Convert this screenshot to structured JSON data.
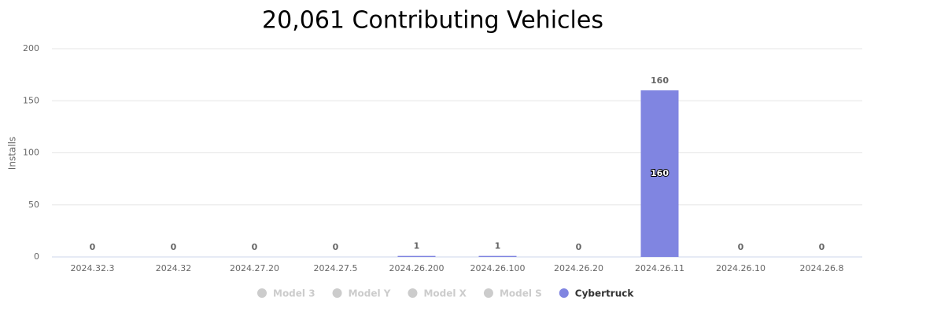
{
  "chart_data": {
    "type": "stacked-bar",
    "title": "20,061 Contributing Vehicles",
    "y_label": "Installs",
    "categories": [
      "2024.32.3",
      "2024.32",
      "2024.27.20",
      "2024.27.5",
      "2024.26.200",
      "2024.26.100",
      "2024.26.20",
      "2024.26.11",
      "2024.26.10",
      "2024.26.8"
    ],
    "series": [
      {
        "name": "Model 3",
        "color": "#cccccc",
        "visible": false,
        "values": [
          null,
          null,
          null,
          null,
          null,
          null,
          null,
          null,
          null,
          null
        ]
      },
      {
        "name": "Model Y",
        "color": "#cccccc",
        "visible": false,
        "values": [
          null,
          null,
          null,
          null,
          null,
          null,
          null,
          null,
          null,
          null
        ]
      },
      {
        "name": "Model X",
        "color": "#cccccc",
        "visible": false,
        "values": [
          null,
          null,
          null,
          null,
          null,
          null,
          null,
          null,
          null,
          null
        ]
      },
      {
        "name": "Model S",
        "color": "#cccccc",
        "visible": false,
        "values": [
          null,
          null,
          null,
          null,
          null,
          null,
          null,
          null,
          null,
          null
        ]
      },
      {
        "name": "Cybertruck",
        "color": "#8085e1",
        "visible": true,
        "values": [
          0,
          0,
          0,
          0,
          1,
          1,
          0,
          160,
          0,
          0
        ]
      }
    ],
    "ylim": [
      0,
      200
    ],
    "yticks": [
      0,
      50,
      100,
      150,
      200
    ],
    "grid": true,
    "legend": "bottom"
  }
}
